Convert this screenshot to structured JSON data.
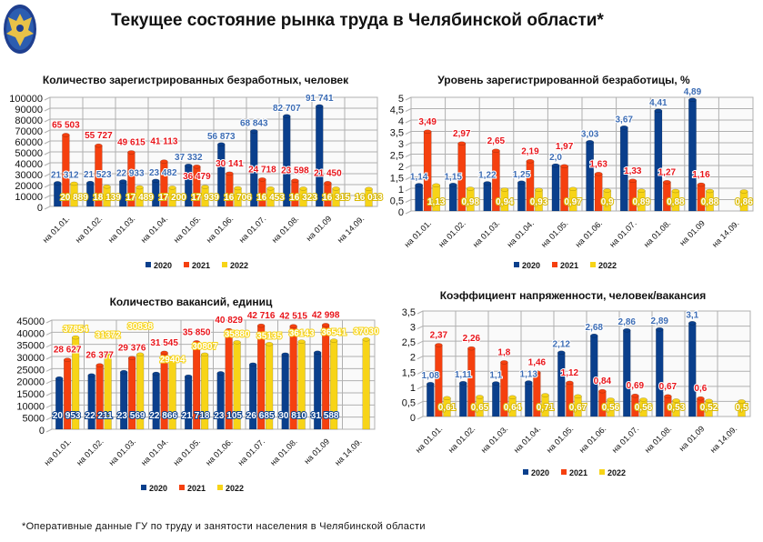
{
  "header": {
    "title": "Текущее состояние рынка труда в Челябинской области*",
    "logo": "ФГУ эмблема — двуглавый орёл"
  },
  "footnote": "*Оперативные данные ГУ по труду и занятости населения в Челябинской области",
  "colors": {
    "2020": "#0a3f8c",
    "2021": "#f5400f",
    "2022": "#f7d417",
    "label2020": "#3d6db5",
    "label2021": "#e8151b",
    "grid": "#b0b0b0"
  },
  "chart_data": [
    {
      "type": "bar",
      "title": "Количество зарегистрированных безработных, человек",
      "categories": [
        "на 01.01.",
        "на 01.02.",
        "на 01.03.",
        "на 01.04.",
        "на 01.05.",
        "на 01.06.",
        "на 01.07.",
        "на 01.08.",
        "на 01.09",
        "на 14.09."
      ],
      "ylim": [
        0,
        100000
      ],
      "yticks": [
        "0",
        "10000",
        "20000",
        "30000",
        "40000",
        "50000",
        "60000",
        "70000",
        "80000",
        "90000",
        "100000"
      ],
      "grid": true,
      "legend": "bottom",
      "series": [
        {
          "name": "2020",
          "values": [
            21312,
            21523,
            22933,
            23482,
            37332,
            56873,
            68843,
            82707,
            91741,
            null
          ],
          "labels": [
            "21 312",
            "21 523",
            "22 933",
            "23 482",
            "37 332",
            "56 873",
            "68 843",
            "82 707",
            "91 741",
            ""
          ]
        },
        {
          "name": "2021",
          "values": [
            65503,
            55727,
            49615,
            41113,
            36479,
            30141,
            24718,
            23598,
            21450,
            null
          ],
          "labels": [
            "65 503",
            "55 727",
            "49 615",
            "41 113",
            "36 479",
            "30 141",
            "24 718",
            "23 598",
            "21 450",
            ""
          ]
        },
        {
          "name": "2022",
          "values": [
            20889,
            18139,
            17489,
            17200,
            17939,
            16706,
            16453,
            16323,
            16315,
            16013
          ],
          "labels": [
            "20 889",
            "18 139",
            "17 489",
            "17 200",
            "17 939",
            "16 706",
            "16 453",
            "16 323",
            "16 315",
            "16 013"
          ]
        }
      ]
    },
    {
      "type": "bar",
      "title": "Уровень зарегистрированной безработицы, %",
      "categories": [
        "на 01.01.",
        "на 01.02.",
        "на 01.03.",
        "на 01.04.",
        "на 01.05.",
        "на 01.06.",
        "на 01.07.",
        "на 01.08.",
        "на 01.09",
        "на 14.09."
      ],
      "ylim": [
        0,
        5
      ],
      "yticks": [
        "0",
        "0,5",
        "1",
        "1,5",
        "2",
        "2,5",
        "3",
        "3,5",
        "4",
        "4,5",
        "5"
      ],
      "grid": true,
      "legend": "bottom",
      "series": [
        {
          "name": "2020",
          "values": [
            1.14,
            1.15,
            1.22,
            1.25,
            2.0,
            3.03,
            3.67,
            4.41,
            4.89,
            null
          ],
          "labels": [
            "1,14",
            "1,15",
            "1,22",
            "1,25",
            "2,0",
            "3,03",
            "3,67",
            "4,41",
            "4,89",
            ""
          ]
        },
        {
          "name": "2021",
          "values": [
            3.49,
            2.97,
            2.65,
            2.19,
            1.97,
            1.63,
            1.33,
            1.27,
            1.16,
            null
          ],
          "labels": [
            "3,49",
            "2,97",
            "2,65",
            "2,19",
            "1,97",
            "1,63",
            "1,33",
            "1,27",
            "1,16",
            ""
          ]
        },
        {
          "name": "2022",
          "values": [
            1.13,
            0.98,
            0.94,
            0.93,
            0.97,
            0.9,
            0.89,
            0.88,
            0.88,
            0.86
          ],
          "labels": [
            "1,13",
            "0,98",
            "0,94",
            "0,93",
            "0,97",
            "0,9",
            "0,89",
            "0,88",
            "0,88",
            "0,86"
          ]
        }
      ]
    },
    {
      "type": "bar",
      "title": "Количество вакансий, единиц",
      "categories": [
        "на 01.01.",
        "на 01.02.",
        "на 01.03.",
        "на 01.04.",
        "на 01.05.",
        "на 01.06.",
        "на 01.07.",
        "на 01.08.",
        "на 01.09",
        "на 14.09."
      ],
      "ylim": [
        0,
        45000
      ],
      "yticks": [
        "0",
        "5000",
        "10000",
        "15000",
        "20000",
        "25000",
        "30000",
        "35000",
        "40000",
        "45000"
      ],
      "grid": true,
      "legend": "bottom",
      "series": [
        {
          "name": "2020",
          "values": [
            20953,
            22211,
            23569,
            22866,
            21718,
            23105,
            26685,
            30810,
            31588,
            null
          ],
          "labels": [
            "20 953",
            "22 211",
            "23 569",
            "22 866",
            "21 718",
            "23 105",
            "26 685",
            "30 810",
            "31 588",
            ""
          ]
        },
        {
          "name": "2021",
          "values": [
            28627,
            26377,
            29376,
            31545,
            35850,
            40829,
            42716,
            42515,
            42998,
            null
          ],
          "labels": [
            "28 627",
            "26 377",
            "29 376",
            "31 545",
            "35 850",
            "40 829",
            "42 716",
            "42 515",
            "42 998",
            ""
          ]
        },
        {
          "name": "2022",
          "values": [
            37854,
            31372,
            30838,
            29404,
            30807,
            35880,
            35135,
            36143,
            36541,
            37030
          ],
          "labels": [
            "37854",
            "31372",
            "30838",
            "29404",
            "30807",
            "35880",
            "35135",
            "36143",
            "36541",
            "37030"
          ]
        }
      ]
    },
    {
      "type": "bar",
      "title": "Коэффициент напряженности, человек/вакансия",
      "categories": [
        "на 01.01.",
        "на 01.02.",
        "на 01.03.",
        "на 01.04.",
        "на 01.05.",
        "на 01.06.",
        "на 01.07.",
        "на 01.08.",
        "на 01.09",
        "на 14.09."
      ],
      "ylim": [
        0,
        3.5
      ],
      "yticks": [
        "0",
        "0,5",
        "1",
        "1,5",
        "2",
        "2,5",
        "3",
        "3,5"
      ],
      "grid": true,
      "legend": "bottom",
      "series": [
        {
          "name": "2020",
          "values": [
            1.08,
            1.11,
            1.1,
            1.13,
            2.12,
            2.68,
            2.86,
            2.89,
            3.1,
            null
          ],
          "labels": [
            "1,08",
            "1,11",
            "1,1",
            "1,13",
            "2,12",
            "2,68",
            "2,86",
            "2,89",
            "3,1",
            ""
          ]
        },
        {
          "name": "2021",
          "values": [
            2.37,
            2.26,
            1.8,
            1.46,
            1.12,
            0.84,
            0.69,
            0.67,
            0.6,
            null
          ],
          "labels": [
            "2,37",
            "2,26",
            "1,8",
            "1,46",
            "1,12",
            "0,84",
            "0,69",
            "0,67",
            "0,6",
            ""
          ]
        },
        {
          "name": "2022",
          "values": [
            0.61,
            0.65,
            0.64,
            0.71,
            0.67,
            0.56,
            0.56,
            0.53,
            0.52,
            0.5
          ],
          "labels": [
            "0,61",
            "0,65",
            "0,64",
            "0,71",
            "0,67",
            "0,56",
            "0,56",
            "0,53",
            "0,52",
            "0,5"
          ]
        }
      ]
    }
  ]
}
